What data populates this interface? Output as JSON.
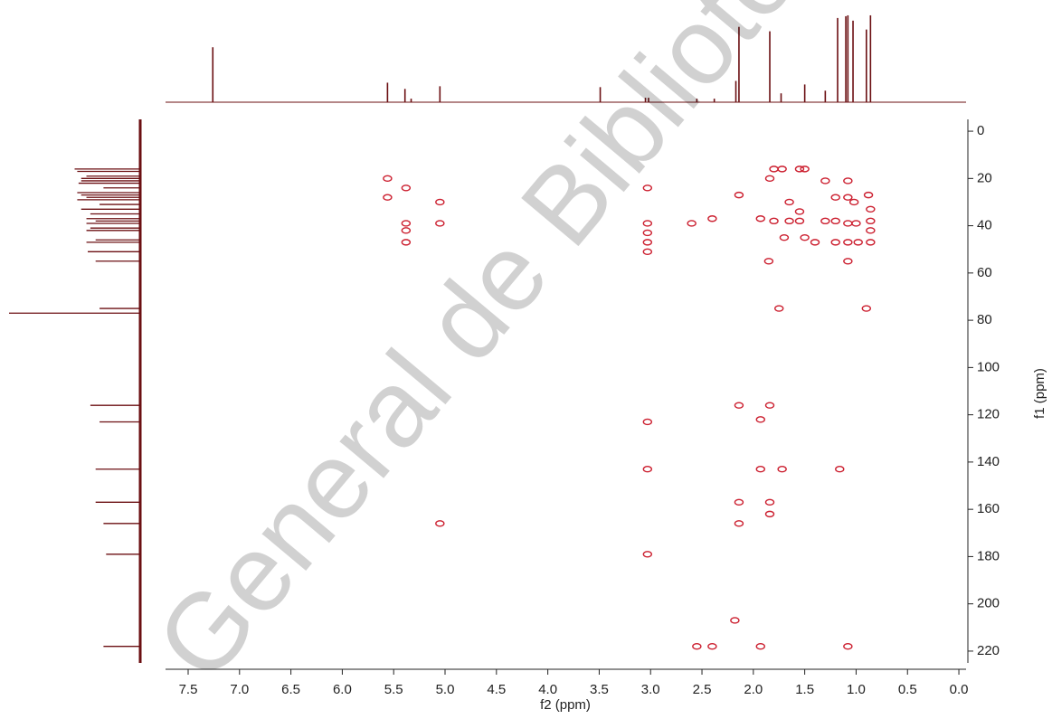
{
  "chart_data": {
    "type": "nmr2d",
    "xlabel": "f2 (ppm)",
    "ylabel": "f1 (ppm)",
    "watermark": "General de Bibliotecas",
    "xlim": [
      7.72,
      -0.07
    ],
    "xticks": [
      7.5,
      {
        "value": 7,
        "label": "7.0"
      },
      6.5,
      {
        "value": 6,
        "label": "6.0"
      },
      5.5,
      {
        "value": 5,
        "label": "5.0"
      },
      4.5,
      {
        "value": 4,
        "label": "4.0"
      },
      3.5,
      {
        "value": 3,
        "label": "3.0"
      },
      2.5,
      {
        "value": 2,
        "label": "2.0"
      },
      1.5,
      {
        "value": 1,
        "label": "1.0"
      },
      0.5,
      {
        "value": 0,
        "label": "0.0"
      }
    ],
    "ylim": [
      -5,
      225
    ],
    "yticks": [
      0,
      20,
      40,
      60,
      80,
      100,
      120,
      140,
      160,
      180,
      200,
      220
    ],
    "spectrum_color": "#6b0f12",
    "contour_color": "#cc2030",
    "top_spectrum": {
      "ppm": [
        7.26,
        5.56,
        5.39,
        5.33,
        5.05,
        3.49,
        3.05,
        3.02,
        2.55,
        2.38,
        2.17,
        2.14,
        1.84,
        1.73,
        1.5,
        1.3,
        1.18,
        1.1,
        1.08,
        1.03,
        0.9,
        0.86
      ],
      "intensity": [
        62,
        22,
        15,
        4,
        18,
        17,
        5,
        5,
        4,
        4,
        24,
        85,
        80,
        10,
        20,
        13,
        95,
        97,
        98,
        92,
        82,
        98
      ]
    },
    "side_spectrum": {
      "ppm": [
        16,
        17,
        19,
        20,
        21,
        22,
        24,
        26,
        27,
        28,
        29,
        31,
        33,
        35,
        37,
        38,
        39,
        41,
        42,
        46,
        47,
        51,
        55,
        75,
        77,
        116,
        123,
        143,
        157,
        166,
        179,
        218
      ],
      "intensity": [
        50,
        48,
        41,
        45,
        45,
        47,
        28,
        48,
        45,
        41,
        48,
        31,
        45,
        38,
        41,
        34,
        41,
        38,
        41,
        34,
        41,
        40,
        34,
        31,
        100,
        38,
        31,
        34,
        34,
        28,
        26,
        28
      ]
    },
    "cross_peaks": {
      "x": [
        5.56,
        5.56,
        5.38,
        5.38,
        5.38,
        5.38,
        5.05,
        5.05,
        5.05,
        3.03,
        3.03,
        3.03,
        3.03,
        3.03,
        3.03,
        3.03,
        3.03,
        2.6,
        2.55,
        2.4,
        2.4,
        2.14,
        2.14,
        2.14,
        2.14,
        2.18,
        1.84,
        1.84,
        1.84,
        1.84,
        1.93,
        1.93,
        1.93,
        1.93,
        1.75,
        1.72,
        1.8,
        1.72,
        1.55,
        1.5,
        1.16,
        1.08,
        1.08,
        1.08,
        1.08,
        1.08,
        1.08,
        1.02,
        1.0,
        0.98,
        0.88,
        0.86,
        0.86,
        0.86,
        0.86,
        0.9,
        1.2,
        1.2,
        1.2,
        1.3,
        1.3,
        1.4,
        1.55,
        1.55,
        1.65,
        1.65,
        1.7,
        1.5,
        1.85,
        1.8
      ],
      "y": [
        20,
        28,
        24,
        39,
        42,
        47,
        30,
        39,
        166,
        24,
        39,
        43,
        47,
        51,
        123,
        143,
        179,
        39,
        218,
        37,
        218,
        27,
        116,
        157,
        166,
        207,
        20,
        116,
        157,
        162,
        122,
        143,
        218,
        37,
        75,
        143,
        16,
        16,
        16,
        16,
        143,
        218,
        55,
        47,
        39,
        28,
        21,
        30,
        39,
        47,
        27,
        33,
        38,
        42,
        47,
        75,
        28,
        38,
        47,
        21,
        38,
        47,
        34,
        38,
        30,
        38,
        45,
        45,
        55,
        38
      ]
    }
  }
}
